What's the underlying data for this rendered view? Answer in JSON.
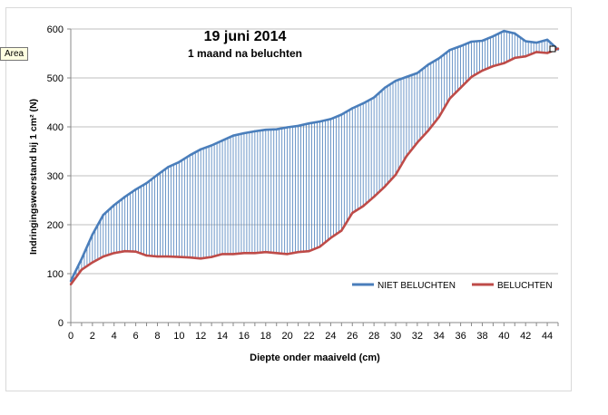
{
  "tooltip": "Area",
  "chart_data": {
    "type": "line",
    "title": "19 juni 2014",
    "subtitle": "1 maand na beluchten",
    "xlabel": "Diepte onder maaiveld (cm)",
    "ylabel": "Indringingsweerstand bij 1 cm² (N)",
    "xlim": [
      0,
      45
    ],
    "ylim": [
      0,
      600
    ],
    "xticks": [
      "0",
      "2",
      "4",
      "6",
      "8",
      "10",
      "12",
      "14",
      "16",
      "18",
      "20",
      "22",
      "24",
      "26",
      "28",
      "30",
      "32",
      "34",
      "36",
      "38",
      "40",
      "42",
      "44"
    ],
    "yticks": [
      "0",
      "100",
      "200",
      "300",
      "400",
      "500",
      "600"
    ],
    "legend_position": "inside-bottom-right",
    "hatched_area_between_series": true,
    "colors": {
      "niet_beluchten": "#4a7ebb",
      "beluchten": "#be4b48",
      "hatch": "#4a7ebb"
    },
    "x": [
      0,
      1,
      2,
      3,
      4,
      5,
      6,
      7,
      8,
      9,
      10,
      11,
      12,
      13,
      14,
      15,
      16,
      17,
      18,
      19,
      20,
      21,
      22,
      23,
      24,
      25,
      26,
      27,
      28,
      29,
      30,
      31,
      32,
      33,
      34,
      35,
      36,
      37,
      38,
      39,
      40,
      41,
      42,
      43,
      44,
      45
    ],
    "series": [
      {
        "name": "NIET BELUCHTEN",
        "color": "#4a7ebb",
        "values": [
          85,
          130,
          180,
          220,
          240,
          257,
          272,
          285,
          302,
          318,
          328,
          342,
          354,
          362,
          372,
          382,
          387,
          391,
          394,
          395,
          399,
          402,
          407,
          411,
          416,
          425,
          438,
          448,
          460,
          480,
          494,
          502,
          510,
          527,
          540,
          557,
          565,
          574,
          576,
          585,
          596,
          591,
          575,
          572,
          578,
          558
        ]
      },
      {
        "name": "BELUCHTEN",
        "color": "#be4b48",
        "values": [
          78,
          108,
          123,
          135,
          142,
          146,
          145,
          137,
          135,
          135,
          134,
          133,
          131,
          134,
          140,
          140,
          142,
          142,
          144,
          142,
          140,
          144,
          146,
          155,
          173,
          188,
          224,
          238,
          257,
          278,
          302,
          340,
          368,
          392,
          420,
          458,
          480,
          502,
          515,
          524,
          530,
          541,
          544,
          553,
          551,
          560
        ]
      }
    ]
  }
}
